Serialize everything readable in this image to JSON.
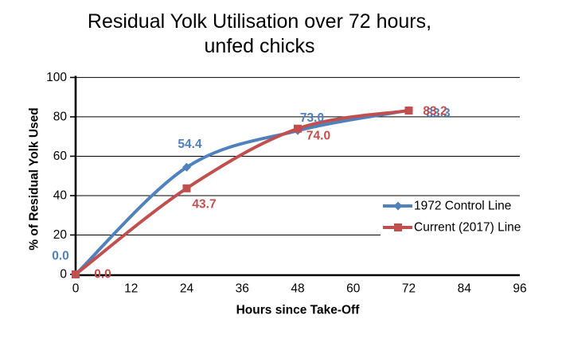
{
  "chart_data": {
    "type": "line",
    "smoothed": true,
    "title": "Residual Yolk Utilisation over 72 hours,",
    "title_line2": "unfed chicks",
    "xlabel": "Hours since Take-Off",
    "ylabel": "% of Residual Yolk Used",
    "xlim": [
      0,
      96
    ],
    "ylim": [
      0,
      100
    ],
    "x_ticks": [
      0,
      12,
      24,
      36,
      48,
      60,
      72,
      84,
      96
    ],
    "y_ticks": [
      0,
      20,
      40,
      60,
      80,
      100
    ],
    "grid": "horizontal",
    "grid_color": "#000000",
    "axis_color": "#000000",
    "legend_position": "right-middle",
    "x": [
      0,
      24,
      48,
      72
    ],
    "series": [
      {
        "name": "1972 Control Line",
        "color": "#4F81BD",
        "marker": "diamond",
        "values": [
          0.0,
          54.4,
          73.0,
          83.3
        ],
        "labels": [
          "0.0",
          "54.4",
          "73.0",
          "83.3"
        ]
      },
      {
        "name": "Current (2017) Line",
        "color": "#C0504D",
        "marker": "square",
        "values": [
          0.0,
          43.7,
          74.0,
          83.2
        ],
        "labels": [
          "0.0",
          "43.7",
          "74.0",
          "83.2"
        ]
      }
    ]
  }
}
